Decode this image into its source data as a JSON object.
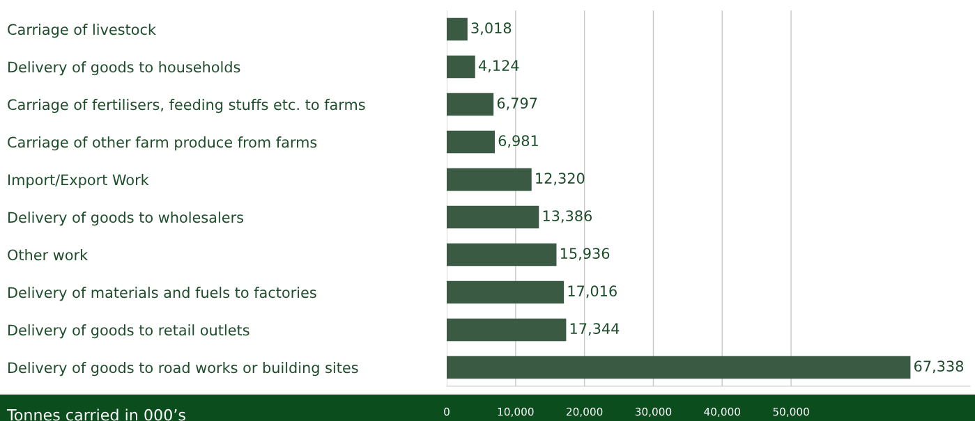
{
  "chart_data": {
    "type": "bar",
    "orientation": "horizontal",
    "xlabel": "Tonnes carried in 000’s",
    "categories": [
      "Carriage of livestock",
      "Delivery of goods to households",
      "Carriage of fertilisers, feeding stuffs etc. to farms",
      "Carriage of other farm produce from farms",
      "Import/Export Work",
      "Delivery of goods to wholesalers",
      "Other work",
      "Delivery of materials and fuels to factories",
      "Delivery of goods to retail outlets",
      "Delivery of goods to road works or building sites"
    ],
    "values": [
      3018,
      4124,
      6797,
      6981,
      12320,
      13386,
      15936,
      17016,
      17344,
      67338
    ],
    "value_labels": [
      "3,018",
      "4,124",
      "6,797",
      "6,981",
      "12,320",
      "13,386",
      "15,936",
      "17,016",
      "17,344",
      "67,338"
    ],
    "color": "#3b5a43",
    "xlim": [
      0,
      76000
    ],
    "xticks": [
      0,
      {
        "value": 10000,
        "label": "10,000"
      },
      {
        "value": 20000,
        "label": "20,000"
      },
      {
        "value": 30000,
        "label": "30,000"
      },
      {
        "value": 40000,
        "label": "40,000"
      },
      {
        "value": 50000,
        "label": "50,000"
      }
    ],
    "grid": "x"
  }
}
